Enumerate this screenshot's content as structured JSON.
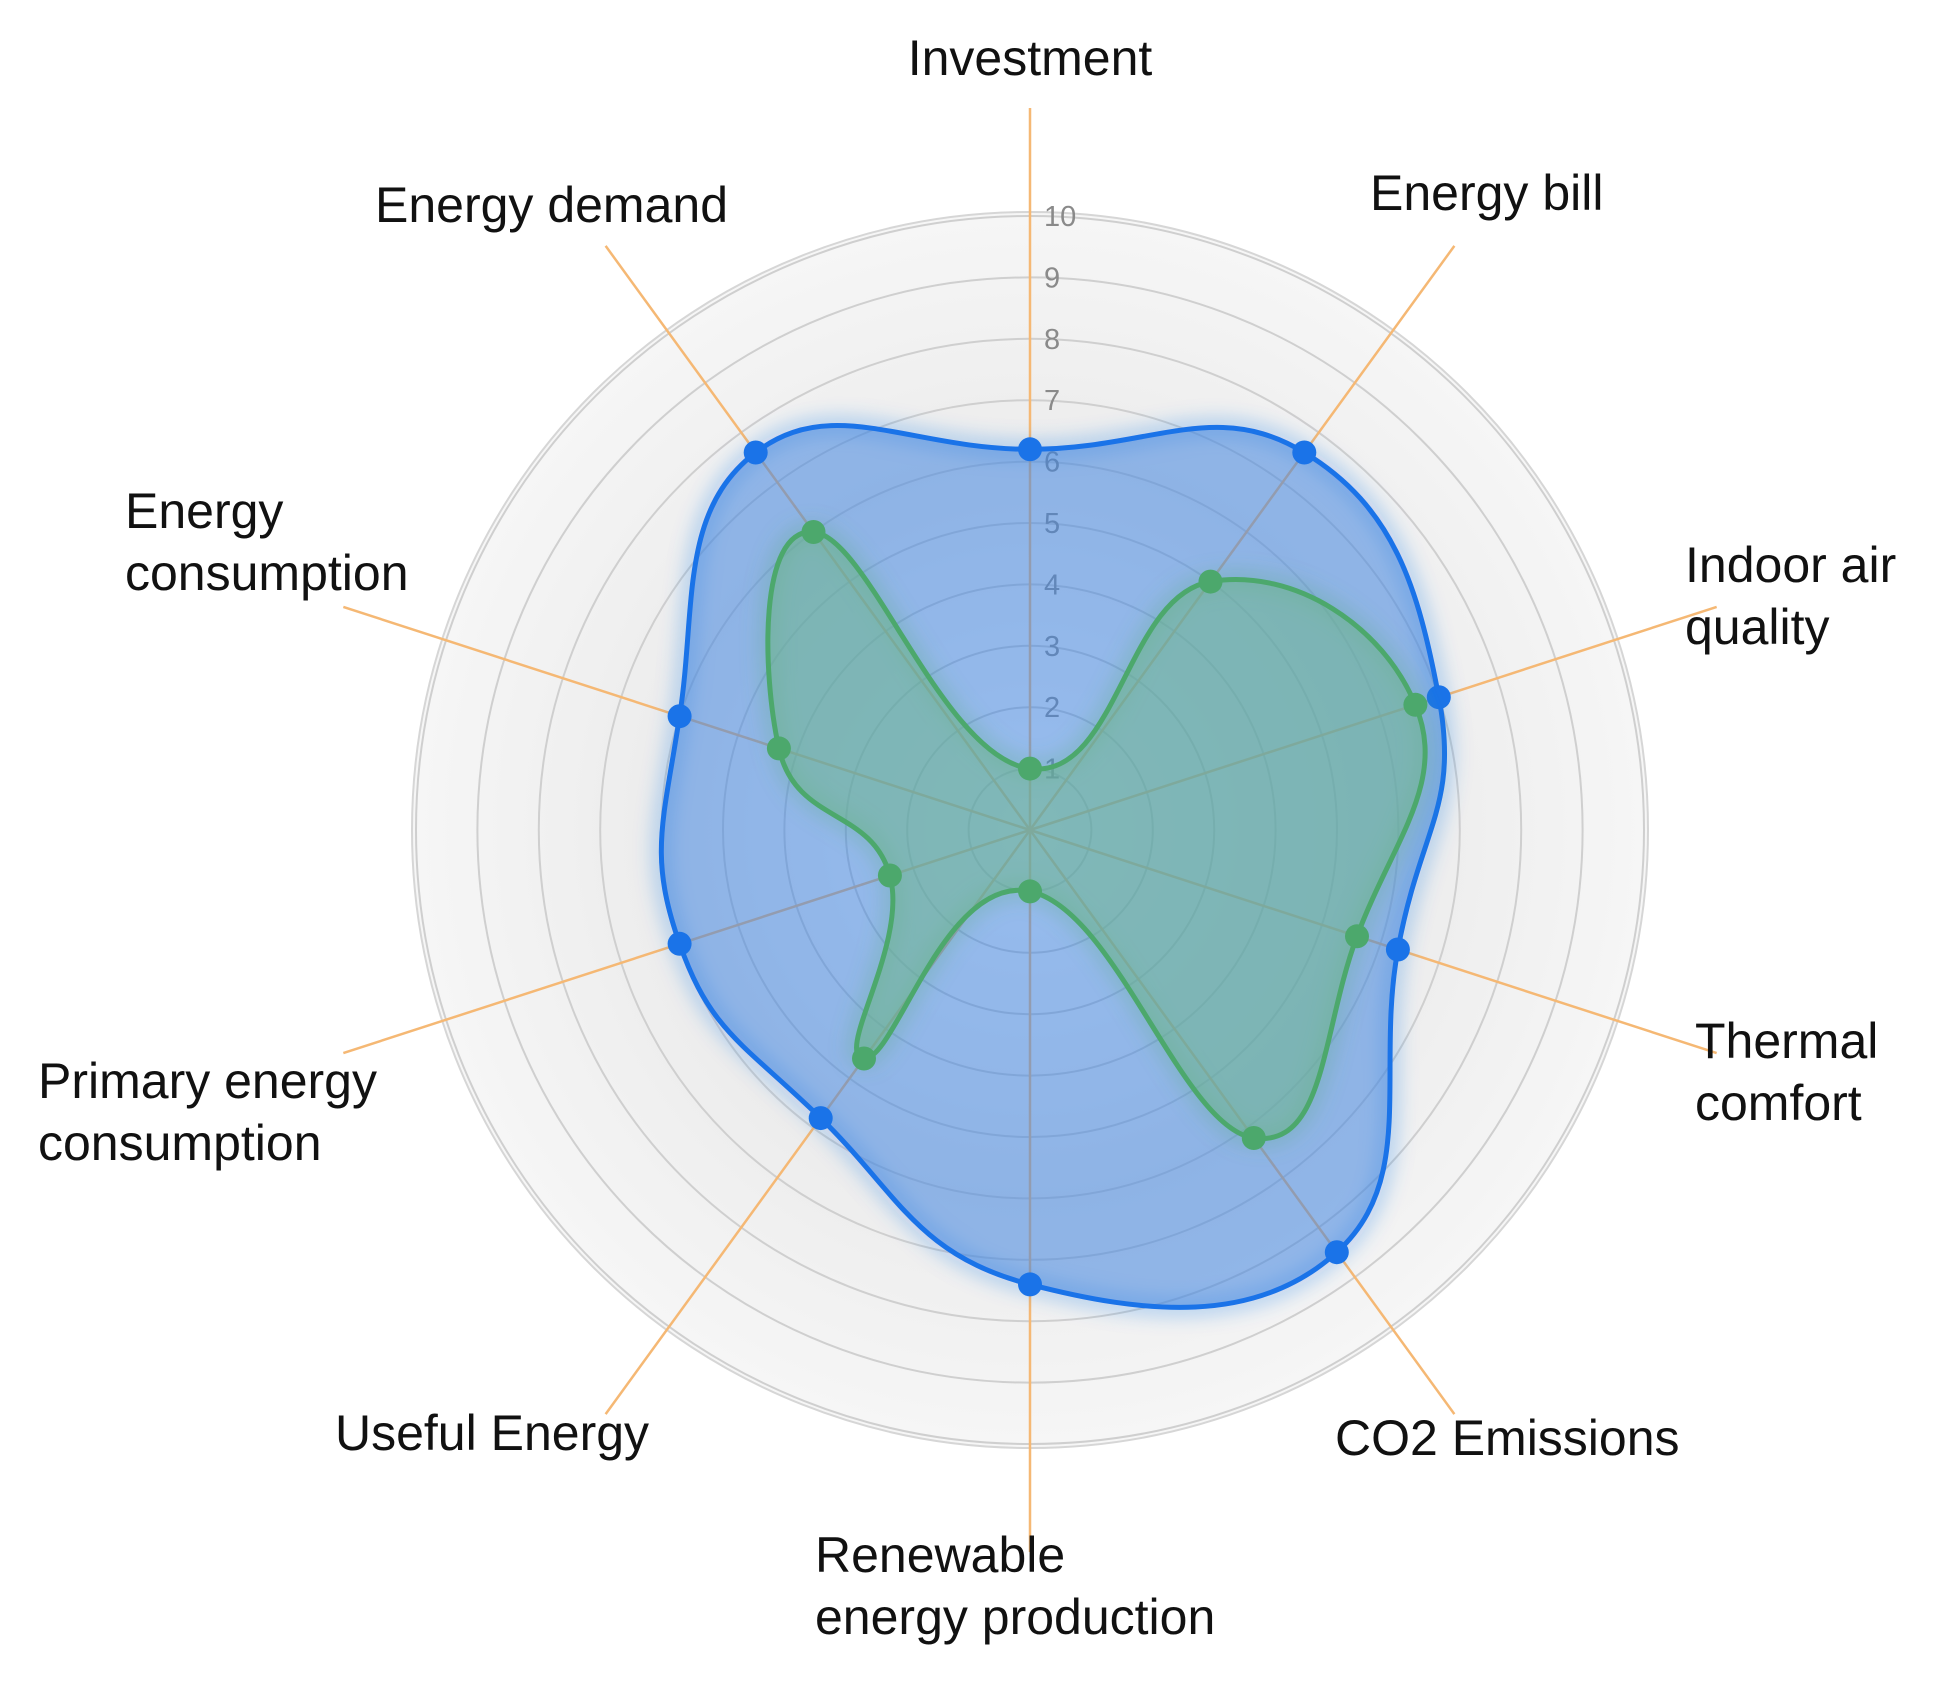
{
  "chart_data": {
    "type": "radar",
    "title": "",
    "axes": [
      {
        "label_lines": [
          "Investment"
        ]
      },
      {
        "label_lines": [
          "Energy bill"
        ]
      },
      {
        "label_lines": [
          "Indoor air",
          "quality"
        ]
      },
      {
        "label_lines": [
          "Thermal",
          "comfort"
        ]
      },
      {
        "label_lines": [
          "CO2 Emissions"
        ]
      },
      {
        "label_lines": [
          "Renewable",
          "energy production"
        ]
      },
      {
        "label_lines": [
          "Useful Energy"
        ]
      },
      {
        "label_lines": [
          "Primary energy",
          "consumption"
        ]
      },
      {
        "label_lines": [
          "Energy",
          "consumption"
        ]
      },
      {
        "label_lines": [
          "Energy demand"
        ]
      }
    ],
    "range": [
      0,
      10
    ],
    "ticks": [
      "1",
      "2",
      "3",
      "4",
      "5",
      "6",
      "7",
      "8",
      "9",
      "10"
    ],
    "series": [
      {
        "color": "#1a73e8",
        "fill": "rgba(66, 133, 224, 0.55)",
        "values": [
          6.2,
          7.6,
          7.0,
          6.3,
          8.5,
          7.4,
          5.8,
          6.0,
          6.0,
          7.6
        ]
      },
      {
        "color": "#4ca86c",
        "fill": "rgba(110, 180, 140, 0.55)",
        "values": [
          1.0,
          5.0,
          6.6,
          5.6,
          6.2,
          1.0,
          4.6,
          2.4,
          4.3,
          6.0
        ]
      }
    ],
    "grid": true,
    "legend": "none"
  }
}
